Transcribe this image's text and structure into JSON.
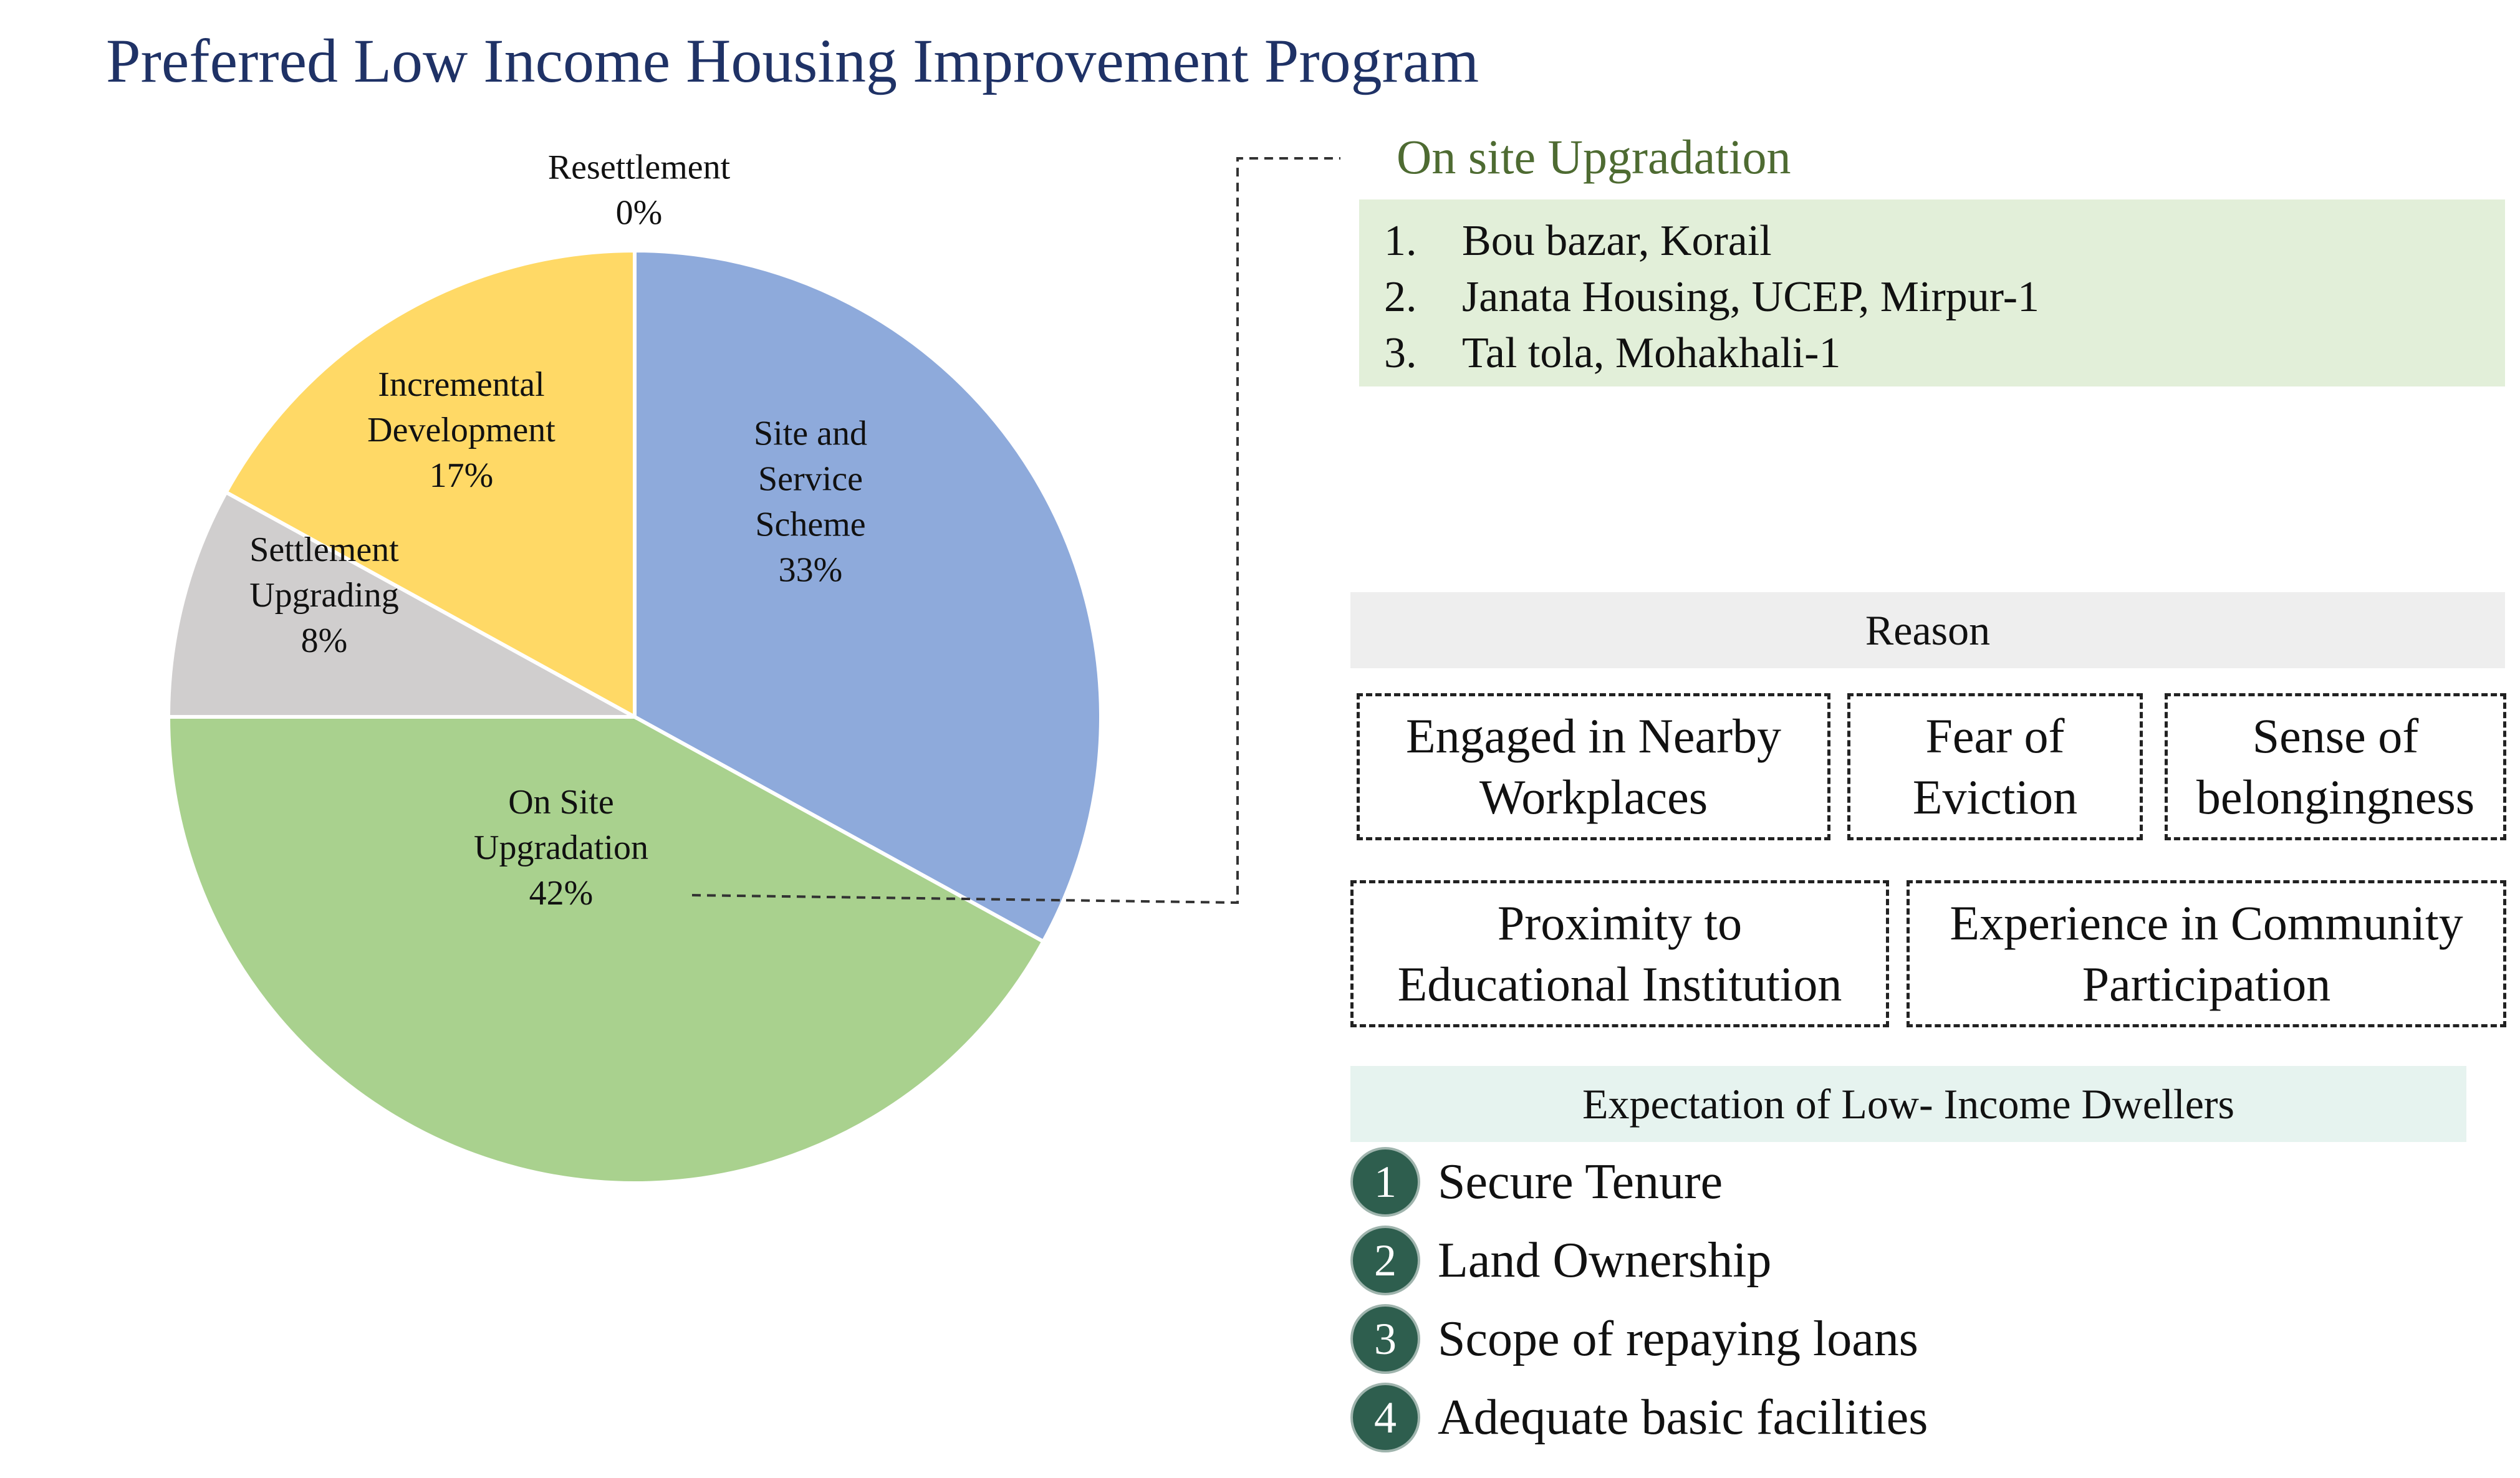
{
  "title": "Preferred Low Income Housing Improvement Program",
  "chart_data": {
    "type": "pie",
    "title": "",
    "slices": [
      {
        "label": "Site and Service Scheme",
        "label_lines": [
          "Site and",
          "Service",
          "Scheme"
        ],
        "value": 33,
        "value_label": "33%",
        "color": "#8eaadb"
      },
      {
        "label": "On Site Upgradation",
        "label_lines": [
          "On Site",
          "Upgradation"
        ],
        "value": 42,
        "value_label": "42%",
        "color": "#a9d18e"
      },
      {
        "label": "Settlement Upgrading",
        "label_lines": [
          "Settlement",
          "Upgrading"
        ],
        "value": 8,
        "value_label": "8%",
        "color": "#d0cece"
      },
      {
        "label": "Incremental Development",
        "label_lines": [
          "Incremental",
          "Development"
        ],
        "value": 17,
        "value_label": "17%",
        "color": "#ffd966"
      },
      {
        "label": "Resettlement",
        "label_lines": [
          "Resettlement"
        ],
        "value": 0,
        "value_label": "0%",
        "color": "#f4b183"
      }
    ],
    "legend": "none"
  },
  "onsite": {
    "heading": "On site Upgradation",
    "items": [
      {
        "num": "1.",
        "text": "Bou bazar, Korail"
      },
      {
        "num": "2.",
        "text": "Janata Housing, UCEP, Mirpur-1"
      },
      {
        "num": "3.",
        "text": "Tal tola, Mohakhali-1"
      }
    ]
  },
  "reason": {
    "heading": "Reason",
    "boxes": [
      {
        "line1": "Engaged in Nearby",
        "line2": "Workplaces"
      },
      {
        "line1": "Fear of",
        "line2": "Eviction"
      },
      {
        "line1": "Sense of",
        "line2": "belongingness"
      },
      {
        "line1": "Proximity to",
        "line2": "Educational Institution"
      },
      {
        "line1": "Experience in Community",
        "line2": "Participation"
      }
    ]
  },
  "expectation": {
    "heading": "Expectation of Low- Income Dwellers",
    "items": [
      {
        "num": "1",
        "text": "Secure Tenure"
      },
      {
        "num": "2",
        "text": "Land Ownership"
      },
      {
        "num": "3",
        "text": "Scope of repaying loans"
      },
      {
        "num": "4",
        "text": "Adequate basic facilities"
      }
    ]
  }
}
